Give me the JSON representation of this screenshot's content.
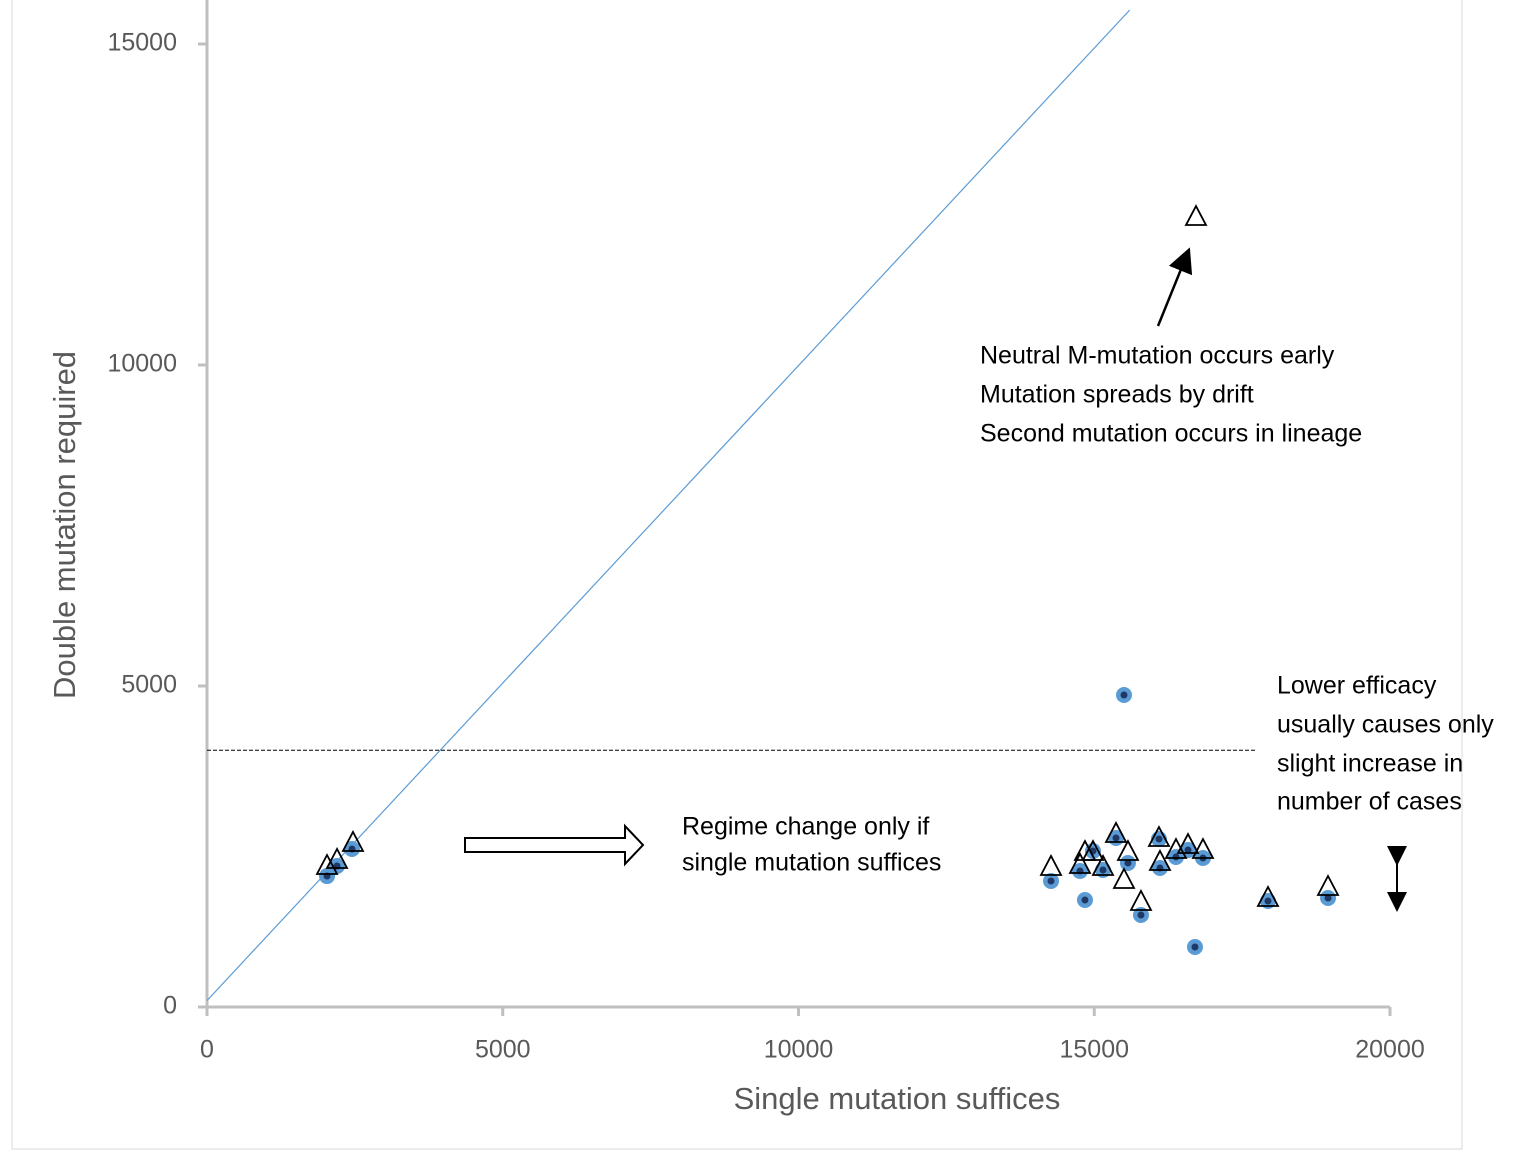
{
  "chart_data": {
    "type": "scatter",
    "xlabel": "Single mutation suffices",
    "ylabel": "Double mutation required",
    "xlim": [
      0,
      20000
    ],
    "ylim": [
      0,
      15000
    ],
    "xticks": [
      0,
      5000,
      10000,
      15000,
      20000
    ],
    "yticks": [
      0,
      5000,
      10000,
      15000
    ],
    "series": [
      {
        "marker": "circle",
        "color": "#5b9bd5",
        "x": [
          2029,
          2198,
          2451,
          14269,
          14759,
          14843,
          14979,
          15148,
          15368,
          15503,
          15570,
          15790,
          16094,
          16111,
          16382,
          16585,
          16703,
          16838,
          17937,
          18952
        ],
        "values": [
          2040,
          2196,
          2461,
          1963,
          2118,
          1667,
          2430,
          2134,
          2632,
          4860,
          2243,
          1433,
          2617,
          2165,
          2336,
          2445,
          935,
          2321,
          1651,
          1698
        ]
      },
      {
        "marker": "triangle",
        "color": "#000000",
        "x": [
          2029,
          2198,
          2468,
          14269,
          14759,
          14843,
          14979,
          15148,
          15368,
          15503,
          15570,
          15790,
          16094,
          16111,
          16382,
          16585,
          16720,
          16838,
          17937,
          18952
        ],
        "values": [
          2196,
          2290,
          2555,
          2181,
          2212,
          2414,
          2414,
          2181,
          2695,
          1978,
          2414,
          1636,
          2632,
          2259,
          2445,
          2523,
          12305,
          2445,
          1698,
          1869
        ]
      }
    ],
    "reference_line": {
      "color": "#5b9bd5",
      "x": [
        0,
        15600
      ],
      "y": [
        100,
        15530
      ]
    },
    "threshold_line": {
      "color": "#000000",
      "x": [
        0,
        17750
      ],
      "y": [
        4000,
        4000
      ]
    },
    "annotations": {
      "early": [
        "Neutral M-mutation occurs early",
        "Mutation spreads by drift",
        "Second mutation occurs in lineage"
      ],
      "regime": [
        "Regime change only if",
        "single mutation suffices"
      ],
      "efficacy": [
        "Lower efficacy",
        "usually causes only",
        "slight increase in",
        "number of cases"
      ]
    }
  }
}
